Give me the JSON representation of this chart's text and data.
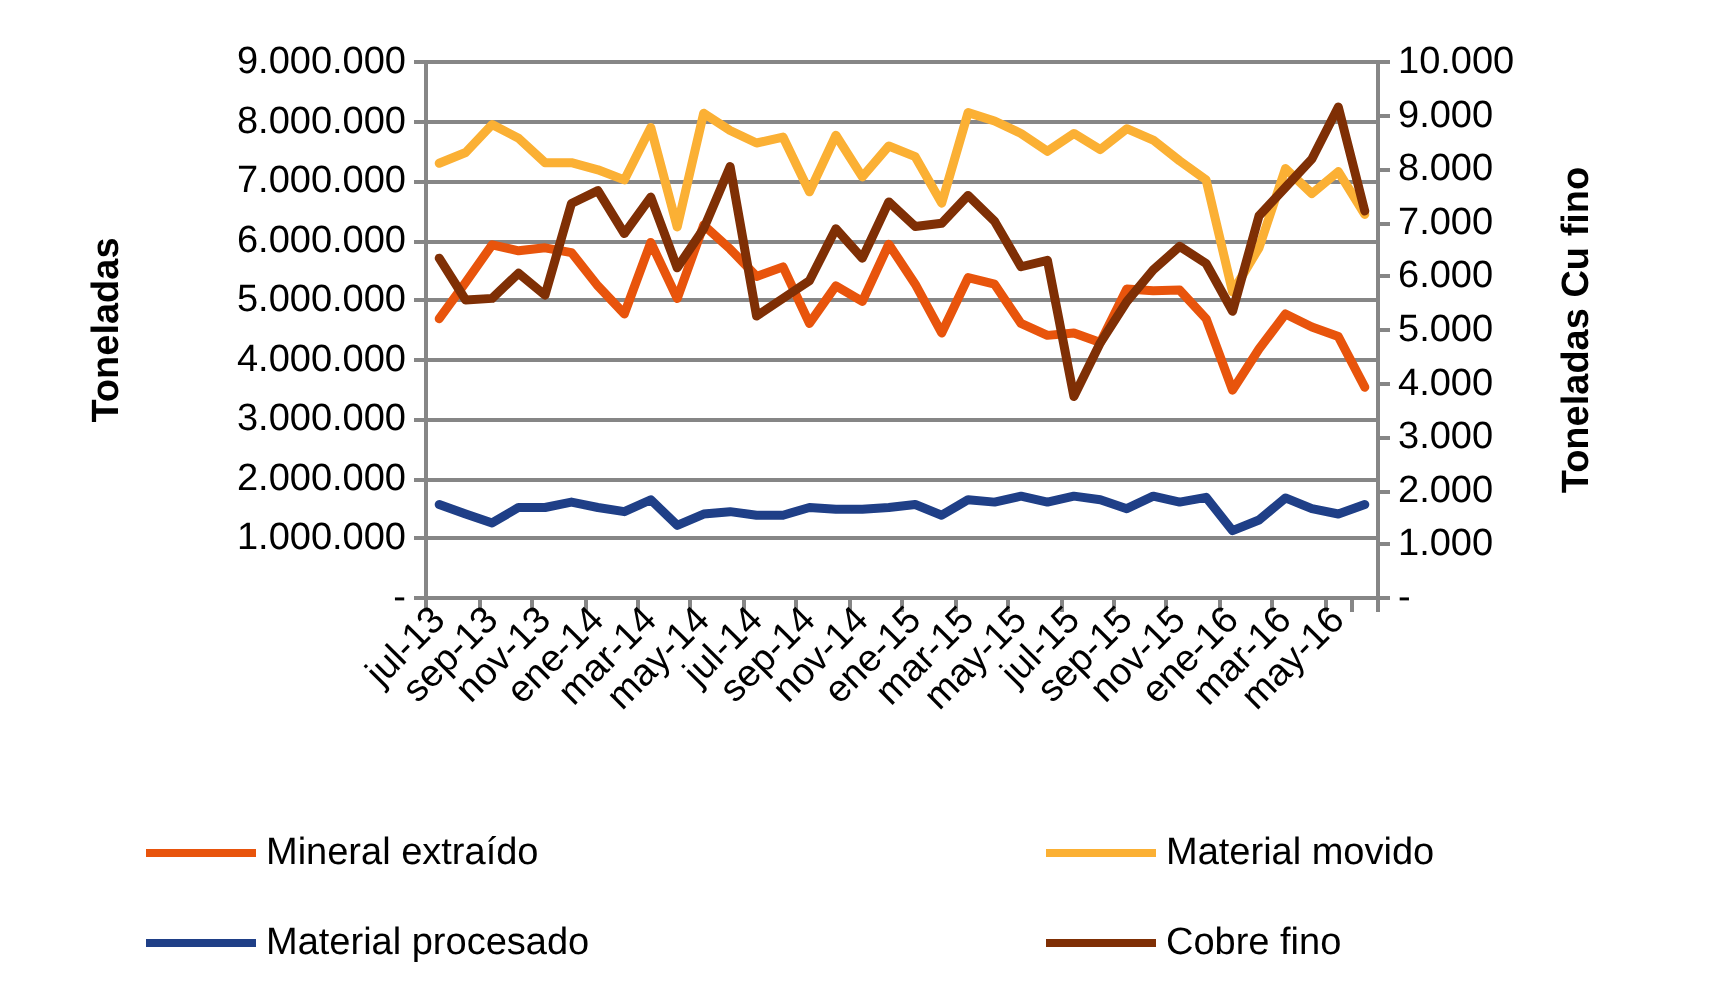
{
  "chart_data": {
    "type": "line",
    "ylabel": "Toneladas",
    "y2label": "Toneladas Cu fino",
    "categories": [
      "jul-13",
      null,
      "sep-13",
      null,
      "nov-13",
      null,
      "ene-14",
      null,
      "mar-14",
      null,
      "may-14",
      null,
      "jul-14",
      null,
      "sep-14",
      null,
      "nov-14",
      null,
      "ene-15",
      null,
      "mar-15",
      null,
      "may-15",
      null,
      "jul-15",
      null,
      "sep-15",
      null,
      "nov-15",
      null,
      "ene-16",
      null,
      "mar-16",
      null,
      "may-16",
      null
    ],
    "series": [
      {
        "name": "Mineral extraído",
        "color": "#e8540c",
        "values": [
          4690000,
          5300000,
          5930000,
          5830000,
          5880000,
          5800000,
          5240000,
          4770000,
          5970000,
          5030000,
          6260000,
          5860000,
          5400000,
          5560000,
          4610000,
          5240000,
          4980000,
          5940000,
          5270000,
          4450000,
          5380000,
          5270000,
          4610000,
          4410000,
          4450000,
          4290000,
          5190000,
          5160000,
          5170000,
          4690000,
          3490000,
          4180000,
          4770000,
          4550000,
          4390000,
          3540000
        ]
      },
      {
        "name": "Material movido",
        "color": "#fbb034",
        "values": [
          7300000,
          7480000,
          7950000,
          7720000,
          7310000,
          7310000,
          7190000,
          7020000,
          7900000,
          6230000,
          8140000,
          7850000,
          7640000,
          7740000,
          6820000,
          7770000,
          7070000,
          7590000,
          7410000,
          6630000,
          8150000,
          8010000,
          7800000,
          7500000,
          7800000,
          7530000,
          7880000,
          7690000,
          7340000,
          7020000,
          5140000,
          5880000,
          7210000,
          6790000,
          7160000,
          6440000
        ]
      },
      {
        "name": "Material procesado",
        "color": "#1f3f87",
        "values": [
          1570000,
          1410000,
          1260000,
          1520000,
          1520000,
          1610000,
          1520000,
          1450000,
          1650000,
          1220000,
          1410000,
          1450000,
          1390000,
          1390000,
          1520000,
          1490000,
          1490000,
          1520000,
          1570000,
          1390000,
          1650000,
          1610000,
          1710000,
          1610000,
          1710000,
          1650000,
          1500000,
          1710000,
          1610000,
          1690000,
          1130000,
          1310000,
          1680000,
          1500000,
          1410000,
          1570000
        ]
      },
      {
        "name": "Cobre fino",
        "color": "#7f2f05",
        "axis": "y2",
        "values": [
          6340,
          5560,
          5590,
          6060,
          5650,
          7360,
          7600,
          6800,
          7480,
          6160,
          6890,
          8050,
          5260,
          5590,
          5920,
          6890,
          6340,
          7390,
          6930,
          6990,
          7510,
          7030,
          6180,
          6300,
          3760,
          4760,
          5530,
          6120,
          6560,
          6240,
          5350,
          7130,
          7660,
          8190,
          9160,
          7220
        ]
      }
    ],
    "ylim": [
      0,
      9000000
    ],
    "yticks": [
      {
        "value": 0,
        "label": "-"
      },
      {
        "value": 1000000,
        "label": "1.000.000"
      },
      {
        "value": 2000000,
        "label": "2.000.000"
      },
      {
        "value": 3000000,
        "label": "3.000.000"
      },
      {
        "value": 4000000,
        "label": "4.000.000"
      },
      {
        "value": 5000000,
        "label": "5.000.000"
      },
      {
        "value": 6000000,
        "label": "6.000.000"
      },
      {
        "value": 7000000,
        "label": "7.000.000"
      },
      {
        "value": 8000000,
        "label": "8.000.000"
      },
      {
        "value": 9000000,
        "label": "9.000.000"
      }
    ],
    "y2lim": [
      0,
      10000
    ],
    "y2ticks": [
      {
        "value": 0,
        "label": "-"
      },
      {
        "value": 1000,
        "label": "1.000"
      },
      {
        "value": 2000,
        "label": "2.000"
      },
      {
        "value": 3000,
        "label": "3.000"
      },
      {
        "value": 4000,
        "label": "4.000"
      },
      {
        "value": 5000,
        "label": "5.000"
      },
      {
        "value": 6000,
        "label": "6.000"
      },
      {
        "value": 7000,
        "label": "7.000"
      },
      {
        "value": 8000,
        "label": "8.000"
      },
      {
        "value": 9000,
        "label": "9.000"
      },
      {
        "value": 10000,
        "label": "10.000"
      }
    ],
    "grid": "y",
    "legend": "bottom",
    "marker": "none",
    "line_style": "solid"
  }
}
